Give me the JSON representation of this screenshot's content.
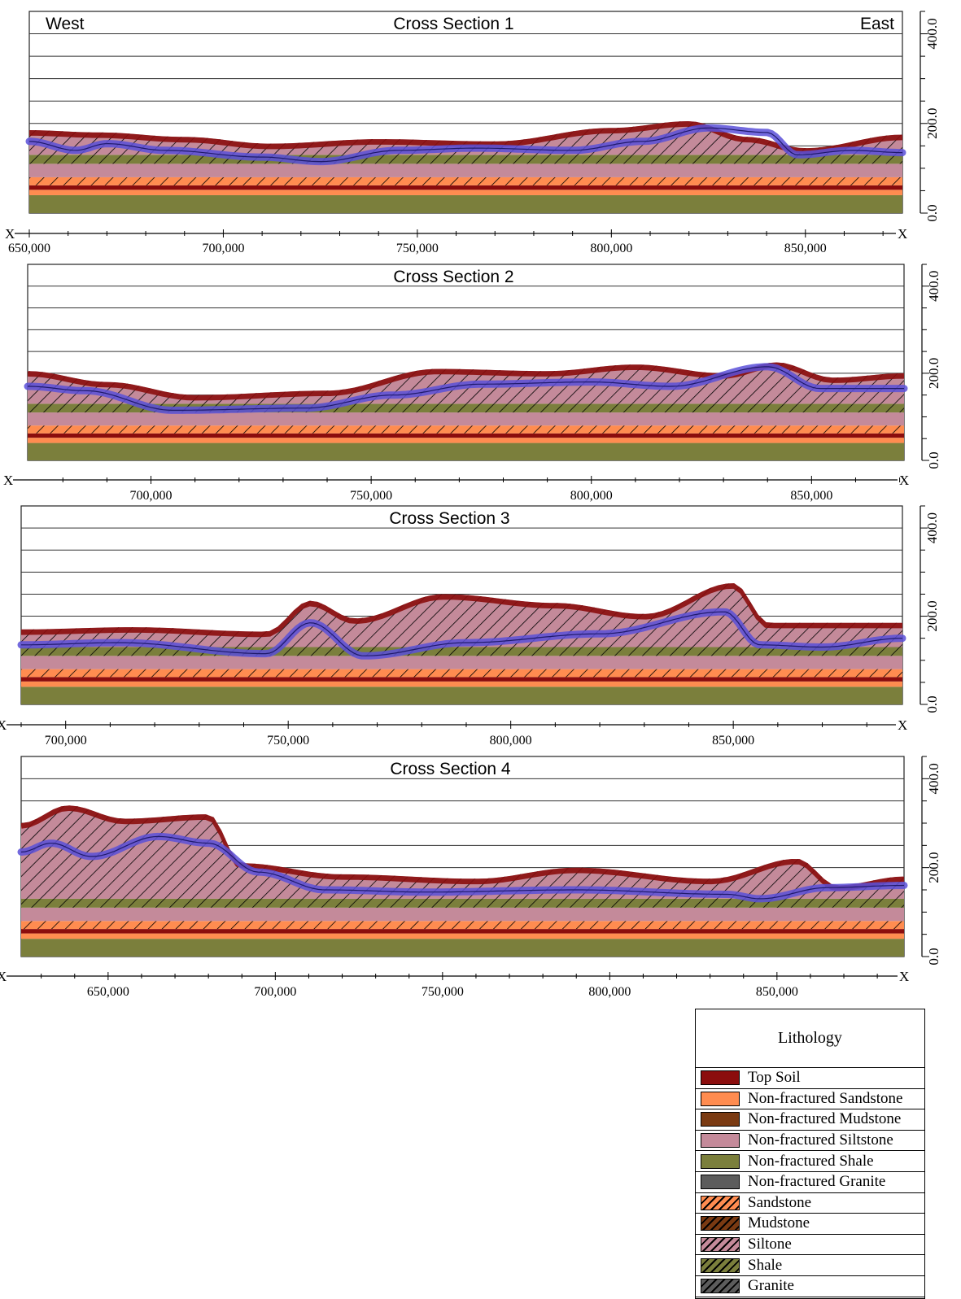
{
  "colors": {
    "top_soil": "#8b0d0d",
    "sandstone": "#ff8c50",
    "mudstone": "#7a3a12",
    "siltstone": "#c48a9a",
    "shale": "#7b7f3c",
    "granite": "#5c5c5c",
    "water_table": "#5a50d8"
  },
  "legend": {
    "title": "Lithology",
    "items": [
      {
        "label": "Top Soil",
        "color_key": "top_soil",
        "hatched": false
      },
      {
        "label": "Non-fractured Sandstone",
        "color_key": "sandstone",
        "hatched": false
      },
      {
        "label": "Non-fractured Mudstone",
        "color_key": "mudstone",
        "hatched": false
      },
      {
        "label": "Non-fractured Siltstone",
        "color_key": "siltstone",
        "hatched": false
      },
      {
        "label": "Non-fractured Shale",
        "color_key": "shale",
        "hatched": false
      },
      {
        "label": "Non-fractured Granite",
        "color_key": "granite",
        "hatched": false
      },
      {
        "label": "Sandstone",
        "color_key": "sandstone",
        "hatched": true
      },
      {
        "label": "Mudstone",
        "color_key": "mudstone",
        "hatched": true
      },
      {
        "label": "Siltone",
        "color_key": "siltstone",
        "hatched": true
      },
      {
        "label": "Shale",
        "color_key": "shale",
        "hatched": true
      },
      {
        "label": "Granite",
        "color_key": "granite",
        "hatched": true
      }
    ]
  },
  "chart_data": [
    {
      "type": "area",
      "title": "Cross Section 1",
      "left_label": "West",
      "right_label": "East",
      "x_axis_end_label": "X",
      "xlim": [
        650000,
        875000
      ],
      "xticks": [
        650000,
        700000,
        750000,
        800000,
        850000
      ],
      "xtick_labels": [
        "650,000",
        "700,000",
        "750,000",
        "800,000",
        "850,000"
      ],
      "ylim": [
        0,
        450
      ],
      "yticks": [
        0,
        200,
        400
      ],
      "ytick_labels": [
        "0.0",
        "200.0",
        "400.0"
      ],
      "water_table": {
        "x": [
          650000,
          662000,
          670000,
          685000,
          710000,
          725000,
          745000,
          765000,
          790000,
          808000,
          825000,
          840000,
          848000,
          862000,
          875000
        ],
        "y": [
          160,
          140,
          155,
          140,
          125,
          115,
          140,
          145,
          140,
          160,
          190,
          180,
          130,
          140,
          135
        ]
      },
      "surface": {
        "x": [
          650000,
          668000,
          690000,
          712000,
          740000,
          770000,
          800000,
          820000,
          835000,
          850000,
          875000
        ],
        "y": [
          185,
          180,
          170,
          155,
          165,
          160,
          190,
          205,
          170,
          145,
          175
        ]
      }
    },
    {
      "type": "area",
      "title": "Cross Section 2",
      "x_axis_end_label": "X",
      "xlim": [
        672000,
        871000
      ],
      "xticks": [
        700000,
        750000,
        800000,
        850000
      ],
      "xtick_labels": [
        "700,000",
        "750,000",
        "800,000",
        "850,000"
      ],
      "ylim": [
        0,
        450
      ],
      "yticks": [
        0,
        200,
        400
      ],
      "ytick_labels": [
        "0.0",
        "200.0",
        "400.0"
      ],
      "water_table": {
        "x": [
          672000,
          685000,
          705000,
          735000,
          755000,
          775000,
          800000,
          818000,
          840000,
          852000,
          871000
        ],
        "y": [
          170,
          160,
          115,
          120,
          150,
          175,
          180,
          170,
          215,
          165,
          165
        ]
      },
      "surface": {
        "x": [
          672000,
          690000,
          710000,
          740000,
          765000,
          790000,
          810000,
          830000,
          842000,
          855000,
          871000
        ],
        "y": [
          205,
          180,
          150,
          160,
          210,
          205,
          220,
          200,
          225,
          190,
          200
        ]
      }
    },
    {
      "type": "area",
      "title": "Cross Section 3",
      "x_axis_end_label": "X",
      "xlim": [
        690000,
        888000
      ],
      "xticks": [
        700000,
        750000,
        800000,
        850000
      ],
      "xtick_labels": [
        "700,000",
        "750,000",
        "800,000",
        "850,000"
      ],
      "ylim": [
        0,
        450
      ],
      "yticks": [
        0,
        200,
        400
      ],
      "ytick_labels": [
        "0.0",
        "200.0",
        "400.0"
      ],
      "water_table": {
        "x": [
          690000,
          712000,
          745000,
          755000,
          767000,
          790000,
          820000,
          848000,
          856000,
          870000,
          888000
        ],
        "y": [
          135,
          140,
          115,
          185,
          110,
          140,
          160,
          210,
          135,
          130,
          150
        ]
      },
      "surface": {
        "x": [
          690000,
          715000,
          745000,
          755000,
          765000,
          785000,
          810000,
          830000,
          850000,
          858000,
          888000
        ],
        "y": [
          170,
          175,
          165,
          235,
          195,
          250,
          230,
          205,
          275,
          185,
          185
        ]
      }
    },
    {
      "type": "area",
      "title": "Cross Section 4",
      "x_axis_end_label": "X",
      "xlim": [
        624000,
        888000
      ],
      "xticks": [
        650000,
        700000,
        750000,
        800000,
        850000
      ],
      "xtick_labels": [
        "650,000",
        "700,000",
        "750,000",
        "800,000",
        "850,000"
      ],
      "ylim": [
        0,
        450
      ],
      "yticks": [
        0,
        200,
        400
      ],
      "ytick_labels": [
        "0.0",
        "200.0",
        "400.0"
      ],
      "water_table": {
        "x": [
          624000,
          633000,
          645000,
          665000,
          680000,
          695000,
          715000,
          745000,
          790000,
          835000,
          845000,
          865000,
          888000
        ],
        "y": [
          235,
          255,
          225,
          270,
          255,
          190,
          150,
          145,
          150,
          140,
          130,
          155,
          160
        ]
      },
      "surface": {
        "x": [
          624000,
          638000,
          655000,
          680000,
          690000,
          720000,
          760000,
          790000,
          830000,
          856000,
          868000,
          888000
        ],
        "y": [
          300,
          340,
          310,
          320,
          210,
          185,
          175,
          200,
          175,
          220,
          160,
          180
        ]
      }
    }
  ]
}
